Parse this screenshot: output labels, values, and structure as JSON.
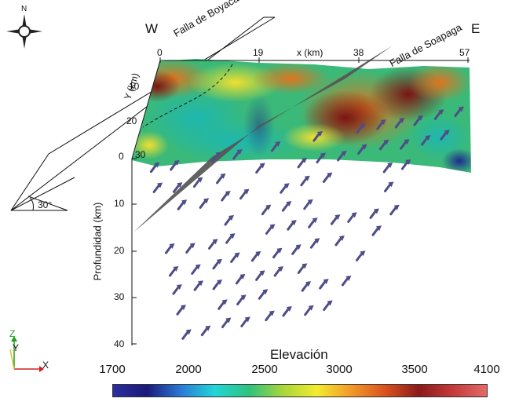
{
  "compass": {
    "north_label": "N"
  },
  "directions": {
    "west": "W",
    "east": "E"
  },
  "faults": {
    "boyaca": "Falla de Boyacá",
    "soapaga": "Falla de Soapaga"
  },
  "x_axis": {
    "label": "x (km)",
    "ticks": [
      "0",
      "19",
      "38",
      "57"
    ]
  },
  "y_axis": {
    "label": "Y (km)",
    "ticks": [
      "10",
      "20",
      "30"
    ]
  },
  "depth_axis": {
    "label": "Profundidad (km)",
    "ticks": [
      "0",
      "10",
      "20",
      "30",
      "40"
    ]
  },
  "dip_angle": "30°",
  "triad": {
    "z": "Z",
    "y": "Y",
    "x": "X"
  },
  "colorbar": {
    "title": "Elevación",
    "ticks": [
      "1700",
      "2000",
      "2500",
      "3000",
      "3500",
      "4100"
    ],
    "colors": [
      "#2b2f9e",
      "#1a1a7a",
      "#2a7bd6",
      "#22d6d6",
      "#2ec27e",
      "#a8d63a",
      "#f2ec2e",
      "#f29a28",
      "#d9531e",
      "#8b1a1a",
      "#c43a3a",
      "#e46a6a"
    ]
  }
}
